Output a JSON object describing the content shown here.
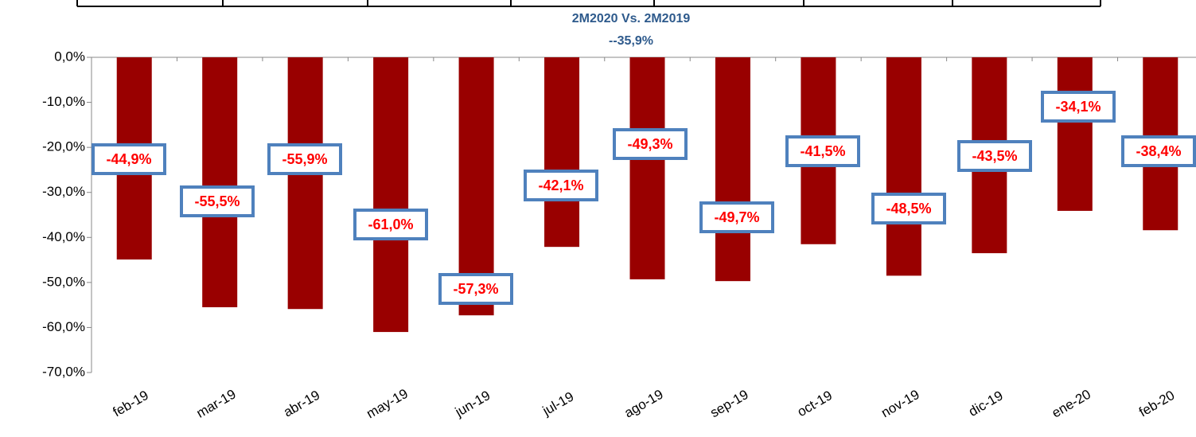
{
  "chart_data": {
    "type": "bar",
    "title": "2M2020 Vs. 2M2019",
    "annotation": "--35,9%",
    "categories": [
      "feb-19",
      "mar-19",
      "abr-19",
      "may-19",
      "jun-19",
      "jul-19",
      "ago-19",
      "sep-19",
      "oct-19",
      "nov-19",
      "dic-19",
      "ene-20",
      "feb-20"
    ],
    "values": [
      -44.9,
      -55.5,
      -55.9,
      -61.0,
      -57.3,
      -42.1,
      -49.3,
      -49.7,
      -41.5,
      -48.5,
      -43.5,
      -34.1,
      -38.4
    ],
    "value_labels": [
      "-44,9%",
      "-55,5%",
      "-55,9%",
      "-61,0%",
      "-57,3%",
      "-42,1%",
      "-49,3%",
      "-49,7%",
      "-41,5%",
      "-48,5%",
      "-43,5%",
      "-34,1%",
      "-38,4%"
    ],
    "color": "#990000",
    "ylim": [
      -70,
      0
    ],
    "yticks": [
      {
        "value": 0,
        "label": "0,0%"
      },
      {
        "value": -10,
        "label": "-10,0%"
      },
      {
        "value": -20,
        "label": "-20,0%"
      },
      {
        "value": -30,
        "label": "-30,0%"
      },
      {
        "value": -40,
        "label": "-40,0%"
      },
      {
        "value": -50,
        "label": "-50,0%"
      },
      {
        "value": -60,
        "label": "-60,0%"
      },
      {
        "value": -70,
        "label": "-70,0%"
      }
    ],
    "grid": false
  }
}
